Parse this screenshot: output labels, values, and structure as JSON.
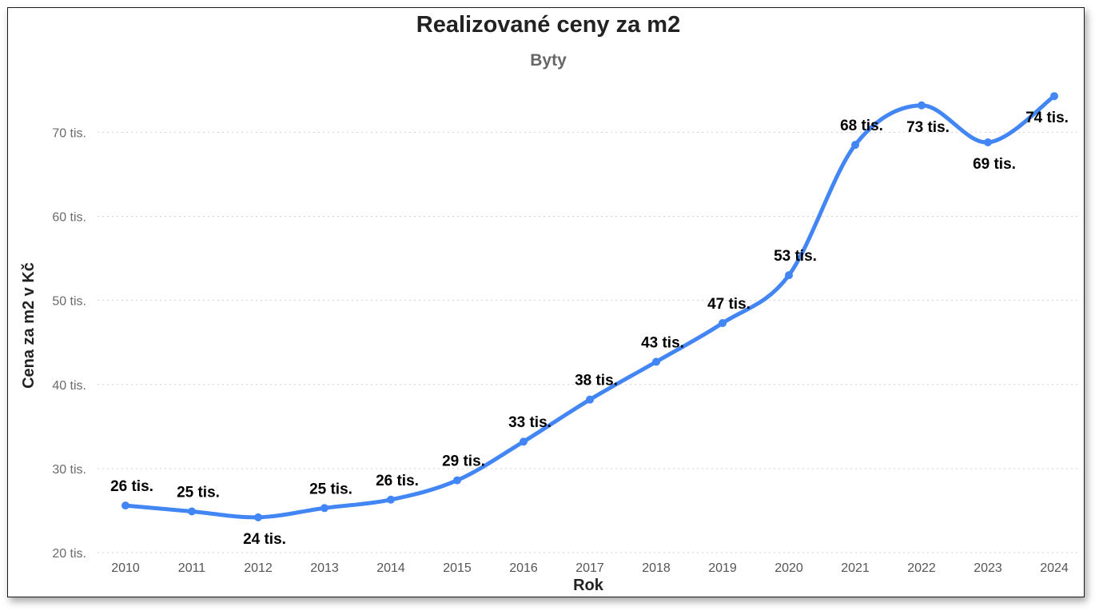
{
  "chart_data": {
    "type": "line",
    "title": "Realizované ceny za m2",
    "subtitle": "Byty",
    "xlabel": "Rok",
    "ylabel": "Cena za m2 v Kč",
    "categories": [
      "2010",
      "2011",
      "2012",
      "2013",
      "2014",
      "2015",
      "2016",
      "2017",
      "2018",
      "2019",
      "2020",
      "2021",
      "2022",
      "2023",
      "2024"
    ],
    "series": [
      {
        "values": [
          25600,
          24900,
          24200,
          25300,
          26300,
          28600,
          33200,
          38200,
          42700,
          47300,
          53000,
          68500,
          73200,
          68800,
          74300
        ],
        "labels": [
          "26 tis.",
          "25 tis.",
          "24 tis.",
          "25 tis.",
          "26 tis.",
          "29 tis.",
          "33 tis.",
          "38 tis.",
          "43 tis.",
          "47 tis.",
          "53 tis.",
          "68 tis.",
          "73 tis.",
          "69 tis.",
          "74 tis."
        ],
        "label_position": [
          "above",
          "above",
          "below",
          "above",
          "above",
          "above",
          "above",
          "above",
          "above",
          "above",
          "above",
          "above",
          "below",
          "below",
          "below"
        ],
        "color": "#4285F4"
      }
    ],
    "yticks": [
      20000,
      30000,
      40000,
      50000,
      60000,
      70000
    ],
    "ytick_labels": [
      "20 tis.",
      "30 tis.",
      "40 tis.",
      "50 tis.",
      "60 tis.",
      "70 tis."
    ],
    "ylim": [
      20000,
      75500
    ],
    "grid": true,
    "legend": "none"
  }
}
